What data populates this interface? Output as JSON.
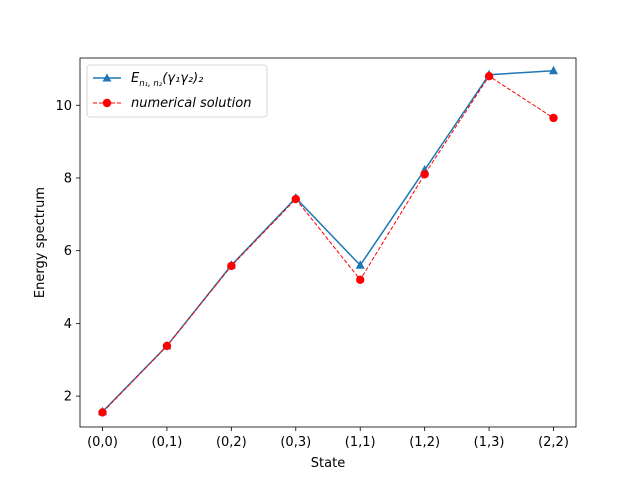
{
  "chart_data": {
    "type": "line",
    "title": "",
    "xlabel": "State",
    "ylabel": "Energy spectrum",
    "categories": [
      "(0,0)",
      "(0,1)",
      "(0,2)",
      "(0,3)",
      "(1,1)",
      "(1,2)",
      "(1,3)",
      "(2,2)"
    ],
    "ylim": [
      1.15,
      11.3
    ],
    "yticks": [
      2,
      4,
      6,
      8,
      10
    ],
    "grid": false,
    "legend_placement": "upper-left",
    "series": [
      {
        "name": "E_{n1,n2}(γ1γ2)2",
        "legend_main": "E",
        "legend_sub": "n₁, n₂",
        "legend_rest": "(γ₁γ₂)₂",
        "values": [
          1.57,
          3.38,
          5.6,
          7.45,
          5.6,
          8.22,
          10.84,
          10.95
        ],
        "color": "#1f77b4",
        "marker": "triangle",
        "linestyle": "solid"
      },
      {
        "name": "numerical solution",
        "values": [
          1.55,
          3.38,
          5.58,
          7.42,
          5.2,
          8.1,
          10.8,
          9.65
        ],
        "color": "#ff0000",
        "marker": "circle",
        "linestyle": "dashed"
      }
    ]
  }
}
